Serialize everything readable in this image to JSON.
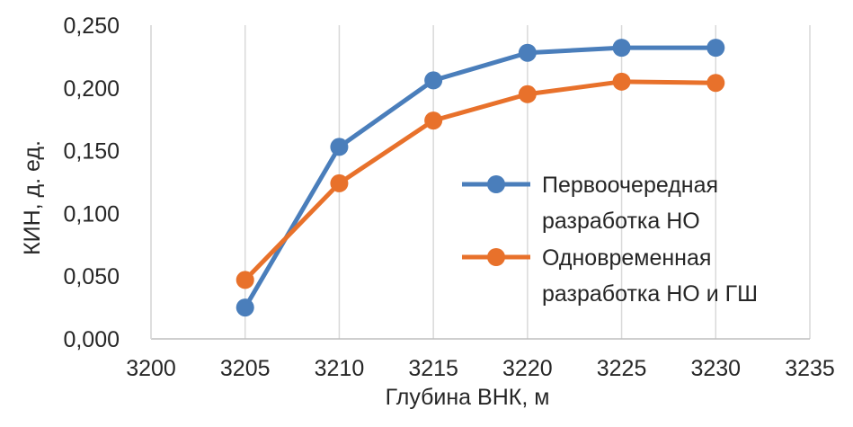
{
  "chart_data": {
    "type": "line",
    "title": "",
    "xlabel": "Глубина ВНК, м",
    "ylabel": "КИН, д. ед.",
    "xlim": [
      3200,
      3235
    ],
    "ylim": [
      0,
      0.25
    ],
    "xticks": [
      "3200",
      "3205",
      "3210",
      "3215",
      "3220",
      "3225",
      "3230",
      "3235"
    ],
    "yticks": [
      "0,000",
      "0,050",
      "0,100",
      "0,150",
      "0,200",
      "0,250"
    ],
    "grid": "vertical",
    "legend_position": "right",
    "x": [
      3205,
      3210,
      3215,
      3220,
      3225,
      3230
    ],
    "series": [
      {
        "name": "Первоочередная разработка НО",
        "legend_lines": [
          "Первоочередная",
          "разработка НО"
        ],
        "color": "#4A7EBB",
        "values": [
          0.025,
          0.153,
          0.206,
          0.228,
          0.232,
          0.232
        ]
      },
      {
        "name": "Одновременная разработка НО и ГШ",
        "legend_lines": [
          "Одновременная",
          "разработка НО и ГШ"
        ],
        "color": "#E8712B",
        "values": [
          0.047,
          0.124,
          0.174,
          0.195,
          0.205,
          0.204
        ]
      }
    ]
  }
}
